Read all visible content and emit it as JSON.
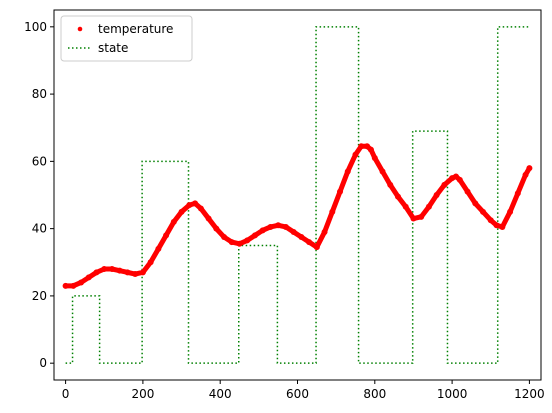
{
  "chart_data": {
    "type": "line",
    "title": "",
    "xlabel": "",
    "ylabel": "",
    "xlim": [
      -30,
      1230
    ],
    "ylim": [
      -5,
      105
    ],
    "x_ticks": [
      0,
      200,
      400,
      600,
      800,
      1000,
      1200
    ],
    "y_ticks": [
      0,
      20,
      40,
      60,
      80,
      100
    ],
    "x_tick_labels": [
      "0",
      "200",
      "400",
      "600",
      "800",
      "1000",
      "1200"
    ],
    "y_tick_labels": [
      "0",
      "20",
      "40",
      "60",
      "80",
      "100"
    ],
    "grid": false,
    "legend": {
      "position": "top-left",
      "entries": [
        "temperature",
        "state"
      ]
    },
    "series": [
      {
        "name": "temperature",
        "style": "dots",
        "color": "#ff0000",
        "x": [
          0,
          20,
          40,
          60,
          80,
          100,
          120,
          140,
          160,
          180,
          200,
          220,
          240,
          260,
          280,
          300,
          320,
          335,
          350,
          370,
          390,
          410,
          430,
          450,
          470,
          490,
          510,
          530,
          550,
          570,
          590,
          610,
          630,
          650,
          670,
          690,
          710,
          730,
          750,
          765,
          780,
          790,
          800,
          820,
          840,
          860,
          880,
          900,
          920,
          940,
          960,
          980,
          1000,
          1010,
          1020,
          1040,
          1060,
          1080,
          1100,
          1115,
          1130,
          1150,
          1170,
          1190,
          1200
        ],
        "y": [
          23,
          23,
          24,
          25.5,
          27,
          28,
          28,
          27.5,
          27,
          26.5,
          27,
          30,
          34,
          38,
          42,
          45,
          47,
          47.5,
          46,
          43,
          40,
          37.5,
          36,
          35.5,
          36.5,
          38,
          39.5,
          40.5,
          41,
          40.5,
          39,
          37.5,
          36,
          34.5,
          39,
          45,
          51,
          57,
          62,
          64.5,
          64.5,
          63.5,
          61,
          57,
          53,
          49.5,
          46.5,
          43,
          43.5,
          46.5,
          50,
          53,
          55,
          55.5,
          54.5,
          51,
          47.5,
          45,
          42.5,
          41,
          40.5,
          45,
          50.5,
          56,
          58
        ]
      },
      {
        "name": "state",
        "style": "dotted-step",
        "color": "#008000",
        "x": [
          0,
          18,
          18,
          88,
          88,
          198,
          198,
          318,
          318,
          448,
          448,
          548,
          548,
          648,
          648,
          758,
          758,
          898,
          898,
          988,
          988,
          1118,
          1118,
          1200
        ],
        "y": [
          0,
          0,
          20,
          20,
          0,
          0,
          60,
          60,
          0,
          0,
          35,
          35,
          0,
          0,
          100,
          100,
          0,
          0,
          69,
          69,
          0,
          0,
          100,
          100
        ]
      }
    ]
  }
}
